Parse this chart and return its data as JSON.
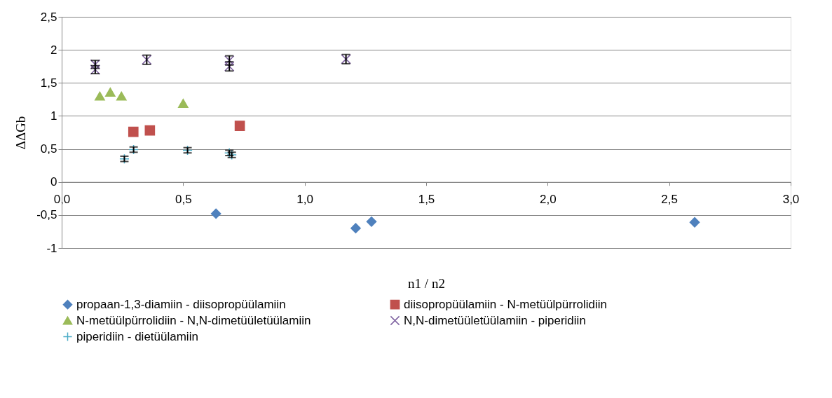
{
  "chart_data": {
    "type": "scatter",
    "xlabel": "n1 / n2",
    "ylabel": "ΔΔGb",
    "xlim": [
      0,
      3
    ],
    "xticks": [
      {
        "value": 0,
        "label": "0,0"
      },
      {
        "value": 0.5,
        "label": "0,5"
      },
      {
        "value": 1,
        "label": "1,0"
      },
      {
        "value": 1.5,
        "label": "1,5"
      },
      {
        "value": 2,
        "label": "2,0"
      },
      {
        "value": 2.5,
        "label": "2,5"
      },
      {
        "value": 3,
        "label": "3,0"
      }
    ],
    "ylim": [
      -1,
      2.5
    ],
    "yticks": [
      -1,
      {
        "value": -0.5,
        "label": "-0,5"
      },
      0,
      {
        "value": 0.5,
        "label": "0,5"
      },
      1,
      {
        "value": 1.5,
        "label": "1,5"
      },
      2,
      {
        "value": 2.5,
        "label": "2,5"
      }
    ],
    "grid": "y",
    "legend": "bottom",
    "series": [
      {
        "name": "propaan-1,3-diamiin - diisopropüülamiin",
        "color": "#4f81bd",
        "marker": "diamond",
        "x": [
          0.635,
          1.21,
          1.275,
          2.605
        ],
        "values": [
          -0.48,
          -0.7,
          -0.6,
          -0.61
        ]
      },
      {
        "name": "diisopropüülamiin - N-metüülpürrolidiin",
        "color": "#c0504d",
        "marker": "square",
        "x": [
          0.295,
          0.363,
          0.733
        ],
        "values": [
          0.76,
          0.78,
          0.85
        ]
      },
      {
        "name": "N-metüülpürrolidiin - N,N-dimetüületüülamiin",
        "color": "#9bbb59",
        "marker": "triangle",
        "x": [
          0.157,
          0.2,
          0.246,
          0.5
        ],
        "values": [
          1.3,
          1.36,
          1.3,
          1.19
        ]
      },
      {
        "name": "N,N-dimetüületüülamiin - piperidiin",
        "color": "#8064a2",
        "marker": "x",
        "x": [
          0.138,
          0.138,
          0.35,
          0.69,
          0.69,
          1.17
        ],
        "values": [
          1.78,
          1.7,
          1.85,
          1.84,
          1.75,
          1.86
        ],
        "errors": [
          0.06,
          0.06,
          0.07,
          0.07,
          0.07,
          0.07
        ]
      },
      {
        "name": "piperidiin - dietüülamiin",
        "color": "#4bacc6",
        "marker": "cross",
        "x": [
          0.258,
          0.296,
          0.518,
          0.69,
          0.7
        ],
        "values": [
          0.35,
          0.49,
          0.48,
          0.44,
          0.41
        ],
        "errors": [
          0.04,
          0.04,
          0.04,
          0.04,
          0.04
        ]
      }
    ]
  }
}
